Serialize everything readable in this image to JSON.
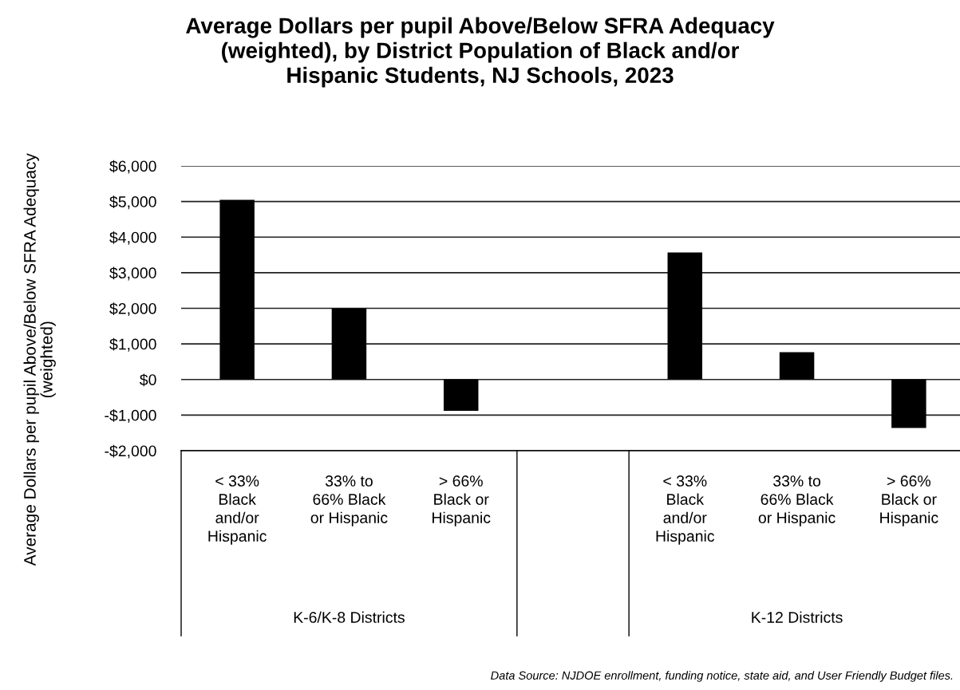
{
  "chart_data": {
    "type": "bar",
    "title": "Average Dollars per pupil Above/Below SFRA Adequacy\n(weighted), by District Population of Black and/or\nHispanic Students, NJ Schools, 2023",
    "ylabel": "Average Dollars per pupil Above/Below SFRA Adequacy\n(weighted)",
    "categories": [
      "< 33%\nBlack\nand/or\nHispanic",
      "33% to\n66% Black\nor Hispanic",
      "> 66%\nBlack or\nHispanic",
      null,
      "< 33%\nBlack\nand/or\nHispanic",
      "33% to\n66% Black\nor Hispanic",
      "> 66%\nBlack or\nHispanic"
    ],
    "values": [
      5050,
      2000,
      -880,
      null,
      3570,
      770,
      -1360
    ],
    "color": "#000000",
    "ylim": [
      -2000,
      6000
    ],
    "yticks": [
      {
        "value": -2000,
        "label": "-$2,000"
      },
      {
        "value": -1000,
        "label": "-$1,000"
      },
      {
        "value": 0,
        "label": "$0"
      },
      {
        "value": 1000,
        "label": "$1,000"
      },
      {
        "value": 2000,
        "label": "$2,000"
      },
      {
        "value": 3000,
        "label": "$3,000"
      },
      {
        "value": 4000,
        "label": "$4,000"
      },
      {
        "value": 5000,
        "label": "$5,000"
      },
      {
        "value": 6000,
        "label": "$6,000"
      }
    ],
    "grid": "y",
    "annotations": [
      "K-6/K-8 Districts",
      "K-12 Districts",
      "Data Source: NJDOE enrollment, funding notice, state aid, and User Friendly Budget files."
    ]
  }
}
